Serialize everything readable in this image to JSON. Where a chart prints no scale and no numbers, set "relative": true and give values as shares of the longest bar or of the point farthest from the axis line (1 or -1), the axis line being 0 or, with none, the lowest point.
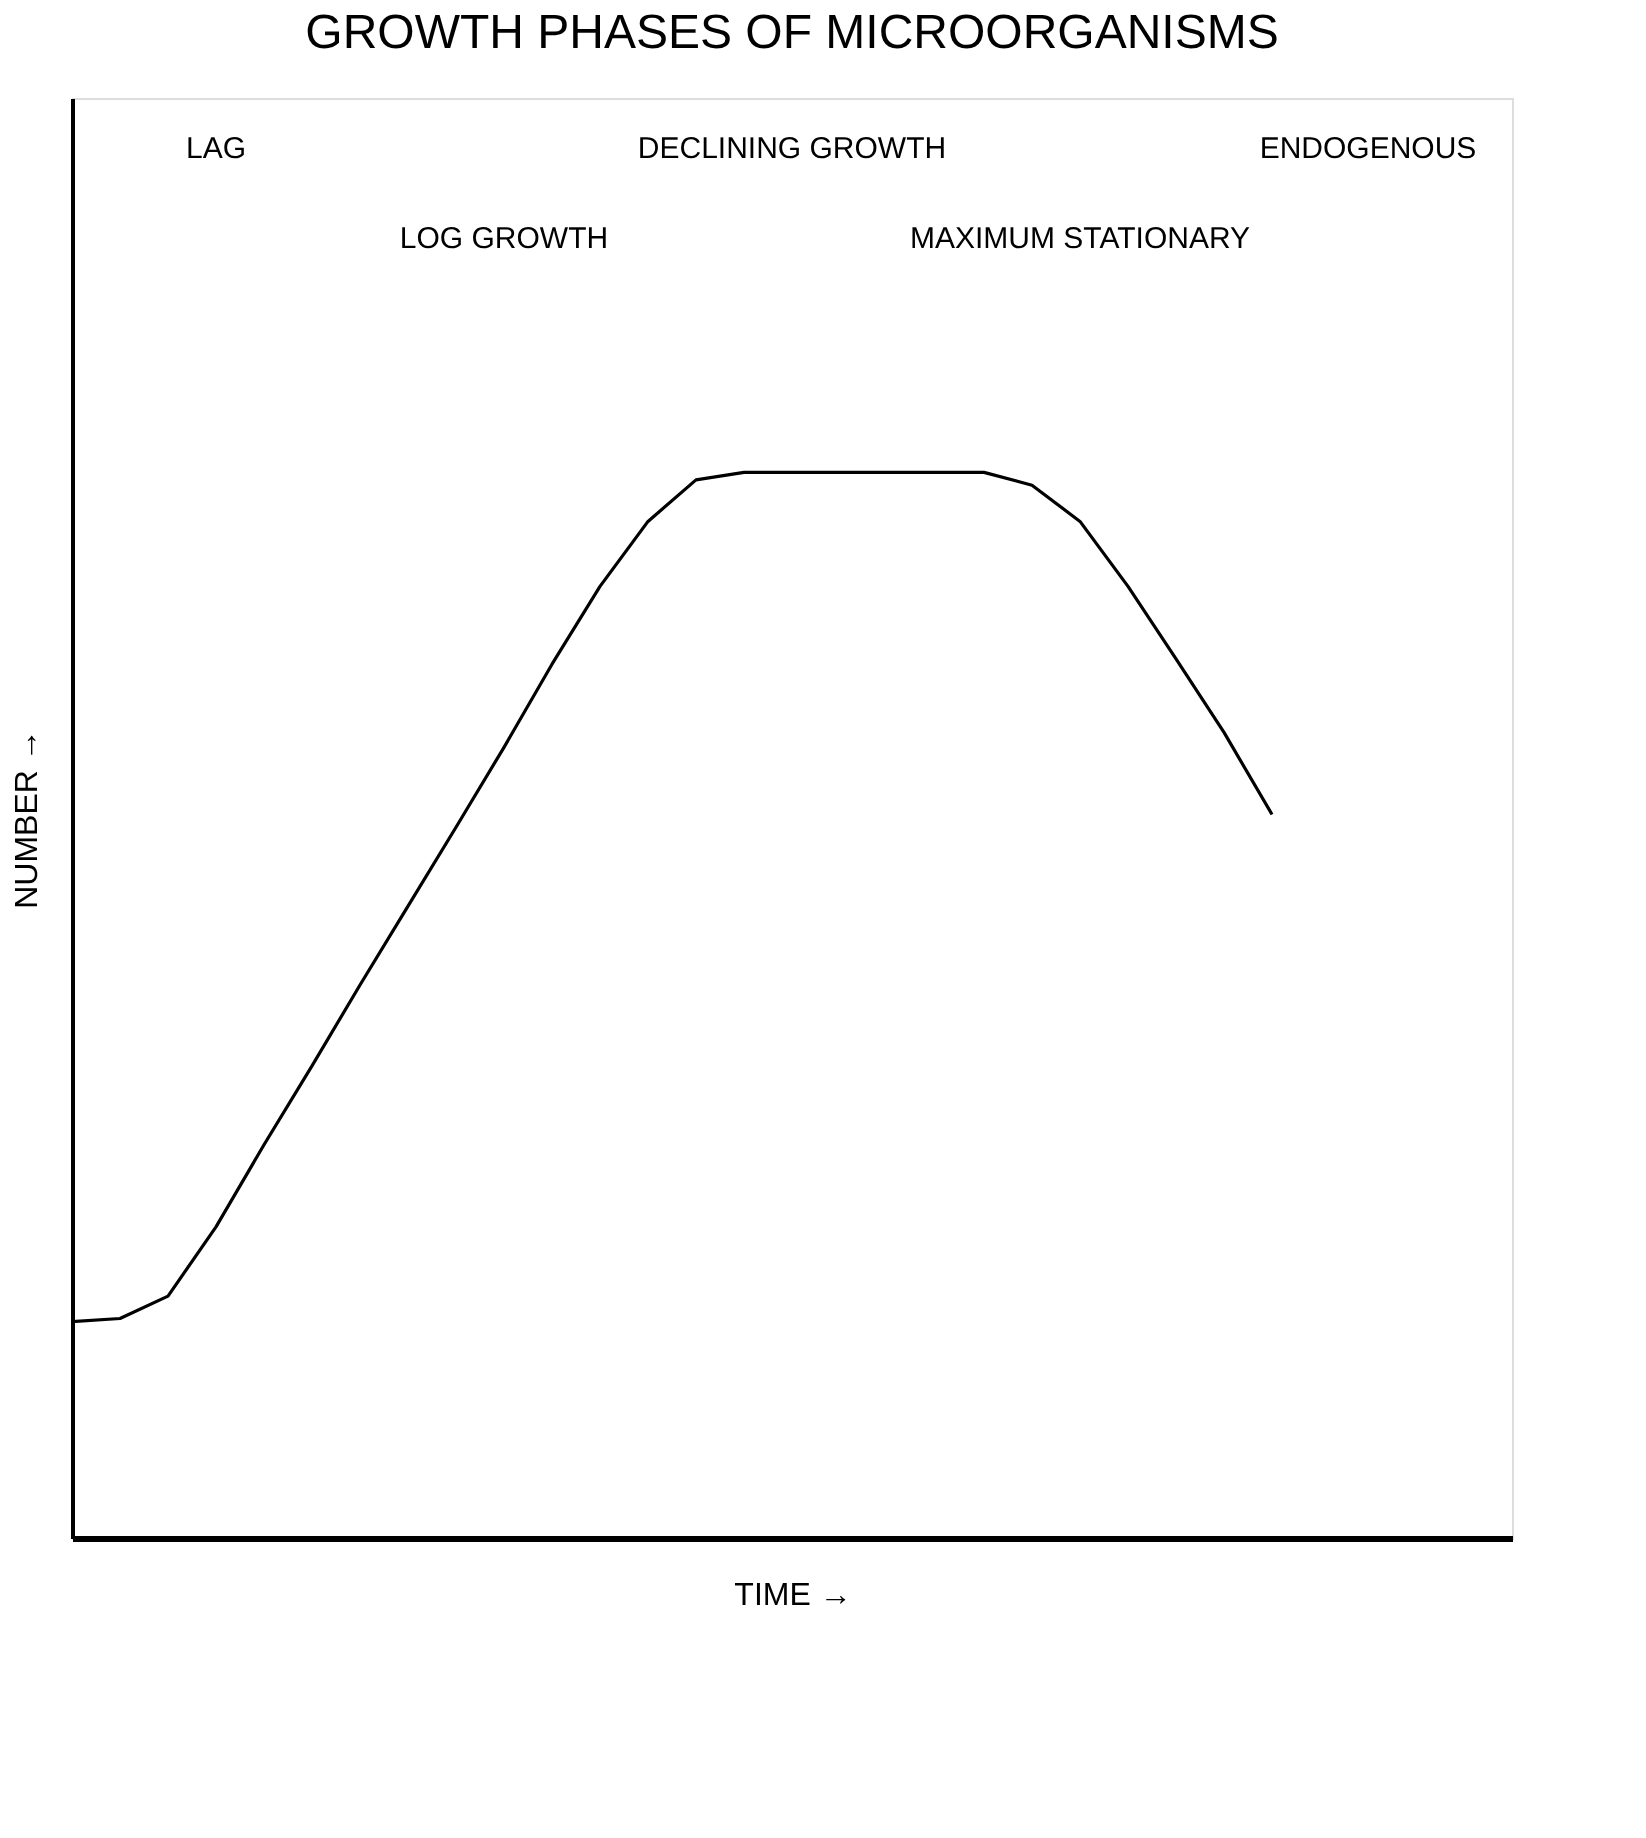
{
  "chart_data": {
    "type": "line",
    "title": "GROWTH PHASES OF MICROORGANISMS",
    "xlabel": "TIME →",
    "ylabel": "NUMBER →",
    "relative": true,
    "tick_labels": false,
    "grid": false,
    "legend": false,
    "marker": "none",
    "line_style": "solid",
    "categories": [
      null,
      null,
      null,
      null,
      null,
      null,
      null,
      null,
      null,
      null,
      null,
      null,
      null,
      null,
      null,
      null,
      null,
      null,
      null,
      null,
      null,
      null,
      null,
      null,
      null,
      null,
      null,
      null,
      null,
      null,
      null
    ],
    "series": [
      {
        "color": "#000000",
        "values": [
          0.203,
          0.206,
          0.227,
          0.292,
          0.369,
          0.443,
          0.519,
          0.593,
          0.667,
          0.742,
          0.82,
          0.893,
          0.954,
          0.993,
          1,
          1,
          1,
          1,
          1,
          1,
          0.988,
          0.954,
          0.893,
          0.825,
          0.756,
          0.679,
          null,
          null,
          null,
          null,
          null
        ]
      }
    ],
    "annotations": [
      "LAG",
      "LOG GROWTH",
      "DECLINING GROWTH",
      "MAXIMUM STATIONARY",
      "ENDOGENOUS"
    ]
  }
}
